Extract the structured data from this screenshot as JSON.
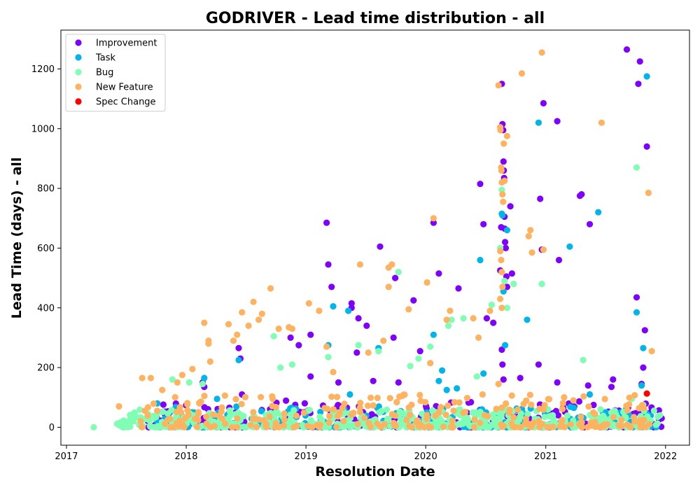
{
  "chart_data": {
    "type": "scatter",
    "title": "GODRIVER - Lead time distribution - all",
    "xlabel": "Resolution Date",
    "ylabel": "Lead Time (days) - all",
    "x_ticks": [
      "2017",
      "2018",
      "2019",
      "2020",
      "2021",
      "2022"
    ],
    "y_ticks": [
      "0",
      "200",
      "400",
      "600",
      "800",
      "1000",
      "1200"
    ],
    "xlim": [
      "2016-12-15",
      "2022-03-15"
    ],
    "ylim": [
      -60,
      1330
    ],
    "grid": false,
    "legend_position": "top-left",
    "series": [
      {
        "name": "Improvement",
        "color": "#8000ff",
        "points": [
          [
            "2018-02-20",
            150
          ],
          [
            "2018-02-25",
            135
          ],
          [
            "2018-06-10",
            265
          ],
          [
            "2018-06-15",
            230
          ],
          [
            "2018-06-20",
            110
          ],
          [
            "2018-11-15",
            300
          ],
          [
            "2018-12-10",
            275
          ],
          [
            "2019-01-15",
            310
          ],
          [
            "2019-01-15",
            170
          ],
          [
            "2019-03-05",
            685
          ],
          [
            "2019-03-10",
            545
          ],
          [
            "2019-03-20",
            470
          ],
          [
            "2019-04-10",
            150
          ],
          [
            "2019-05-20",
            415
          ],
          [
            "2019-05-20",
            400
          ],
          [
            "2019-06-05",
            250
          ],
          [
            "2019-06-10",
            365
          ],
          [
            "2019-07-05",
            340
          ],
          [
            "2019-07-25",
            155
          ],
          [
            "2019-08-15",
            605
          ],
          [
            "2019-09-25",
            300
          ],
          [
            "2019-09-30",
            500
          ],
          [
            "2019-10-10",
            150
          ],
          [
            "2019-11-25",
            425
          ],
          [
            "2019-12-15",
            255
          ],
          [
            "2020-01-25",
            685
          ],
          [
            "2020-02-10",
            515
          ],
          [
            "2020-04-10",
            465
          ],
          [
            "2020-06-15",
            815
          ],
          [
            "2020-06-25",
            680
          ],
          [
            "2020-07-05",
            365
          ],
          [
            "2020-07-25",
            350
          ],
          [
            "2020-08-15",
            525
          ],
          [
            "2020-08-18",
            670
          ],
          [
            "2020-08-20",
            1150
          ],
          [
            "2020-08-22",
            1015
          ],
          [
            "2020-08-24",
            995
          ],
          [
            "2020-08-25",
            890
          ],
          [
            "2020-08-26",
            860
          ],
          [
            "2020-08-27",
            835
          ],
          [
            "2020-08-28",
            705
          ],
          [
            "2020-08-29",
            665
          ],
          [
            "2020-08-30",
            620
          ],
          [
            "2020-09-01",
            600
          ],
          [
            "2020-09-03",
            505
          ],
          [
            "2020-09-05",
            470
          ],
          [
            "2020-08-20",
            260
          ],
          [
            "2020-08-22",
            210
          ],
          [
            "2020-08-25",
            160
          ],
          [
            "2020-09-15",
            740
          ],
          [
            "2020-09-20",
            515
          ],
          [
            "2020-10-15",
            165
          ],
          [
            "2020-12-15",
            765
          ],
          [
            "2020-12-20",
            595
          ],
          [
            "2020-12-25",
            1085
          ],
          [
            "2021-02-05",
            1025
          ],
          [
            "2021-02-10",
            560
          ],
          [
            "2021-02-05",
            150
          ],
          [
            "2021-04-15",
            775
          ],
          [
            "2021-04-20",
            780
          ],
          [
            "2021-05-15",
            680
          ],
          [
            "2021-05-10",
            140
          ],
          [
            "2021-07-20",
            135
          ],
          [
            "2021-07-25",
            160
          ],
          [
            "2021-09-05",
            1265
          ],
          [
            "2021-10-15",
            1225
          ],
          [
            "2021-10-10",
            1150
          ],
          [
            "2021-10-05",
            435
          ],
          [
            "2021-10-30",
            325
          ],
          [
            "2021-11-05",
            940
          ],
          [
            "2021-10-25",
            200
          ],
          [
            "2021-10-20",
            145
          ],
          [
            "2021-11-20",
            55
          ],
          [
            "2021-12-20",
            30
          ],
          [
            "2020-12-10",
            210
          ]
        ]
      },
      {
        "name": "Task",
        "color": "#00b5eb",
        "points": [
          [
            "2017-10-05",
            80
          ],
          [
            "2018-02-25",
            165
          ],
          [
            "2018-04-05",
            95
          ],
          [
            "2018-06-10",
            225
          ],
          [
            "2019-03-10",
            275
          ],
          [
            "2019-03-25",
            405
          ],
          [
            "2019-05-10",
            390
          ],
          [
            "2019-05-15",
            110
          ],
          [
            "2019-08-10",
            265
          ],
          [
            "2020-01-25",
            310
          ],
          [
            "2020-02-10",
            155
          ],
          [
            "2020-02-20",
            190
          ],
          [
            "2020-03-05",
            125
          ],
          [
            "2020-04-05",
            130
          ],
          [
            "2020-06-15",
            560
          ],
          [
            "2020-06-25",
            180
          ],
          [
            "2020-08-20",
            715
          ],
          [
            "2020-08-22",
            710
          ],
          [
            "2020-08-25",
            455
          ],
          [
            "2020-08-30",
            275
          ],
          [
            "2020-09-05",
            660
          ],
          [
            "2020-11-05",
            360
          ],
          [
            "2020-12-10",
            1020
          ],
          [
            "2021-03-15",
            605
          ],
          [
            "2021-06-10",
            720
          ],
          [
            "2021-10-05",
            385
          ],
          [
            "2021-10-20",
            140
          ],
          [
            "2021-10-25",
            265
          ],
          [
            "2021-11-05",
            1175
          ],
          [
            "2021-05-15",
            110
          ]
        ]
      },
      {
        "name": "Bug",
        "color": "#80ffb4",
        "points": [
          [
            "2017-03-25",
            0
          ],
          [
            "2017-07-25",
            20
          ],
          [
            "2017-10-10",
            0
          ],
          [
            "2017-11-20",
            160
          ],
          [
            "2018-01-10",
            150
          ],
          [
            "2018-02-20",
            145
          ],
          [
            "2018-09-25",
            305
          ],
          [
            "2018-10-15",
            200
          ],
          [
            "2018-11-20",
            210
          ],
          [
            "2019-03-10",
            235
          ],
          [
            "2019-06-10",
            275
          ],
          [
            "2019-08-10",
            255
          ],
          [
            "2019-10-10",
            520
          ],
          [
            "2019-11-15",
            205
          ],
          [
            "2019-12-10",
            230
          ],
          [
            "2020-01-15",
            270
          ],
          [
            "2020-03-10",
            340
          ],
          [
            "2020-03-20",
            360
          ],
          [
            "2020-04-25",
            365
          ],
          [
            "2020-06-05",
            170
          ],
          [
            "2020-07-20",
            410
          ],
          [
            "2020-08-15",
            600
          ],
          [
            "2020-08-20",
            795
          ],
          [
            "2020-08-28",
            490
          ],
          [
            "2020-09-05",
            400
          ],
          [
            "2020-09-25",
            480
          ],
          [
            "2020-12-20",
            480
          ],
          [
            "2021-04-25",
            225
          ],
          [
            "2021-09-20",
            95
          ],
          [
            "2021-10-05",
            870
          ],
          [
            "2021-10-25",
            75
          ],
          [
            "2021-12-15",
            40
          ]
        ]
      },
      {
        "name": "New Feature",
        "color": "#ffb360",
        "points": [
          [
            "2017-06-10",
            70
          ],
          [
            "2017-08-20",
            165
          ],
          [
            "2017-09-15",
            165
          ],
          [
            "2017-10-20",
            125
          ],
          [
            "2017-12-05",
            150
          ],
          [
            "2017-12-20",
            175
          ],
          [
            "2018-01-20",
            195
          ],
          [
            "2018-02-25",
            350
          ],
          [
            "2018-03-10",
            290
          ],
          [
            "2018-03-10",
            280
          ],
          [
            "2018-03-15",
            220
          ],
          [
            "2018-05-10",
            345
          ],
          [
            "2018-05-25",
            290
          ],
          [
            "2018-06-05",
            310
          ],
          [
            "2018-06-20",
            385
          ],
          [
            "2018-07-25",
            420
          ],
          [
            "2018-07-10",
            340
          ],
          [
            "2018-08-10",
            360
          ],
          [
            "2018-08-20",
            380
          ],
          [
            "2018-09-15",
            465
          ],
          [
            "2018-10-10",
            330
          ],
          [
            "2018-11-10",
            335
          ],
          [
            "2018-11-20",
            330
          ],
          [
            "2019-01-10",
            415
          ],
          [
            "2019-02-10",
            390
          ],
          [
            "2019-03-05",
            270
          ],
          [
            "2019-03-25",
            185
          ],
          [
            "2019-06-15",
            545
          ],
          [
            "2019-07-10",
            250
          ],
          [
            "2019-08-25",
            290
          ],
          [
            "2019-09-10",
            535
          ],
          [
            "2019-09-20",
            545
          ],
          [
            "2019-09-10",
            470
          ],
          [
            "2019-11-10",
            395
          ],
          [
            "2020-01-05",
            485
          ],
          [
            "2020-01-25",
            700
          ],
          [
            "2020-01-15",
            215
          ],
          [
            "2020-03-05",
            360
          ],
          [
            "2020-03-15",
            390
          ],
          [
            "2020-05-25",
            365
          ],
          [
            "2020-06-10",
            300
          ],
          [
            "2020-07-15",
            390
          ],
          [
            "2020-08-10",
            1145
          ],
          [
            "2020-08-15",
            1005
          ],
          [
            "2020-08-16",
            995
          ],
          [
            "2020-08-18",
            870
          ],
          [
            "2020-08-19",
            860
          ],
          [
            "2020-08-20",
            820
          ],
          [
            "2020-08-22",
            780
          ],
          [
            "2020-08-24",
            755
          ],
          [
            "2020-08-26",
            950
          ],
          [
            "2020-08-28",
            825
          ],
          [
            "2020-09-05",
            975
          ],
          [
            "2020-08-15",
            590
          ],
          [
            "2020-08-18",
            560
          ],
          [
            "2020-08-20",
            520
          ],
          [
            "2020-08-22",
            470
          ],
          [
            "2020-08-15",
            430
          ],
          [
            "2020-08-20",
            400
          ],
          [
            "2020-08-10",
            145
          ],
          [
            "2020-10-20",
            1185
          ],
          [
            "2020-11-10",
            640
          ],
          [
            "2020-11-15",
            660
          ],
          [
            "2020-11-20",
            585
          ],
          [
            "2020-12-25",
            595
          ],
          [
            "2020-12-20",
            1255
          ],
          [
            "2021-06-20",
            1020
          ],
          [
            "2021-11-10",
            785
          ],
          [
            "2021-11-20",
            255
          ]
        ]
      },
      {
        "name": "Spec Change",
        "color": "#ff0000",
        "points": [
          [
            "2021-11-05",
            113
          ]
        ]
      }
    ],
    "dense_cluster_note_free": true
  }
}
